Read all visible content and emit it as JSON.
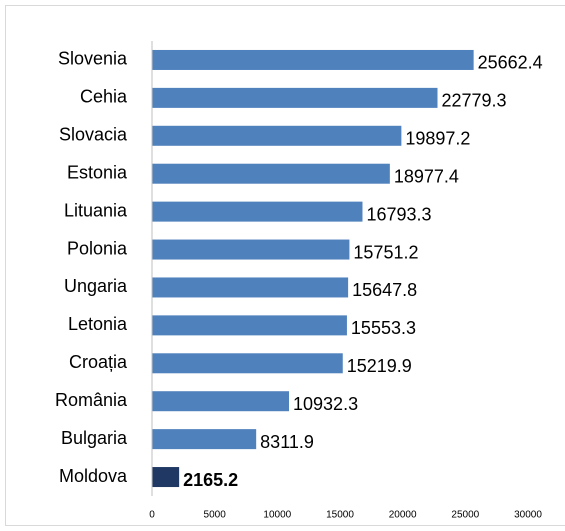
{
  "chart_data": {
    "type": "bar",
    "orientation": "horizontal",
    "categories": [
      "Slovenia",
      "Cehia",
      "Slovacia",
      "Estonia",
      "Lituania",
      "Polonia",
      "Ungaria",
      "Letonia",
      "Croația",
      "România",
      "Bulgaria",
      "Moldova"
    ],
    "values": [
      25662.4,
      22779.3,
      19897.2,
      18977.4,
      16793.3,
      15751.2,
      15647.8,
      15553.3,
      15219.9,
      10932.3,
      8311.9,
      2165.2
    ],
    "colors": [
      "#4f81bd",
      "#4f81bd",
      "#4f81bd",
      "#4f81bd",
      "#4f81bd",
      "#4f81bd",
      "#4f81bd",
      "#4f81bd",
      "#4f81bd",
      "#4f81bd",
      "#4f81bd",
      "#203864"
    ],
    "xlim": [
      0,
      30000
    ],
    "xticks": [
      0,
      5000,
      10000,
      15000,
      20000,
      25000,
      30000
    ],
    "grid": false
  }
}
